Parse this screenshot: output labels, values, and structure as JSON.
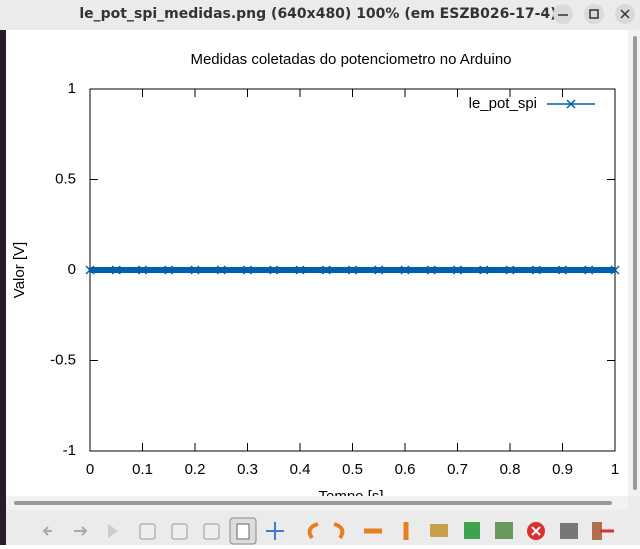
{
  "window": {
    "title": "le_pot_spi_medidas.png (640x480) 100% (em ESZB026-17-4)"
  },
  "chart_data": {
    "type": "line",
    "title": "Medidas coletadas do potenciometro no Arduino",
    "x_label": "Tempo [s]",
    "y_label": "Valor [V]",
    "x": [
      0,
      0.05,
      0.1,
      0.15,
      0.2,
      0.25,
      0.3,
      0.35,
      0.4,
      0.45,
      0.5,
      0.55,
      0.6,
      0.65,
      0.7,
      0.75,
      0.8,
      0.85,
      0.9,
      0.95,
      1
    ],
    "series": [
      {
        "name": "le_pot_spi",
        "color": "#0060ad",
        "values": [
          0,
          0,
          0,
          0,
          0,
          0,
          0,
          0,
          0,
          0,
          0,
          0,
          0,
          0,
          0,
          0,
          0,
          0,
          0,
          0,
          0
        ]
      }
    ],
    "xlim": [
      0,
      1
    ],
    "xticks": [
      0,
      0.1,
      0.2,
      0.3,
      0.4,
      0.5,
      0.6,
      0.7,
      0.8,
      0.9,
      1
    ],
    "ylim": [
      -1,
      1
    ],
    "yticks": [
      -1,
      -0.5,
      0,
      0.5,
      1
    ],
    "legend": "top-right",
    "marker": "x"
  }
}
